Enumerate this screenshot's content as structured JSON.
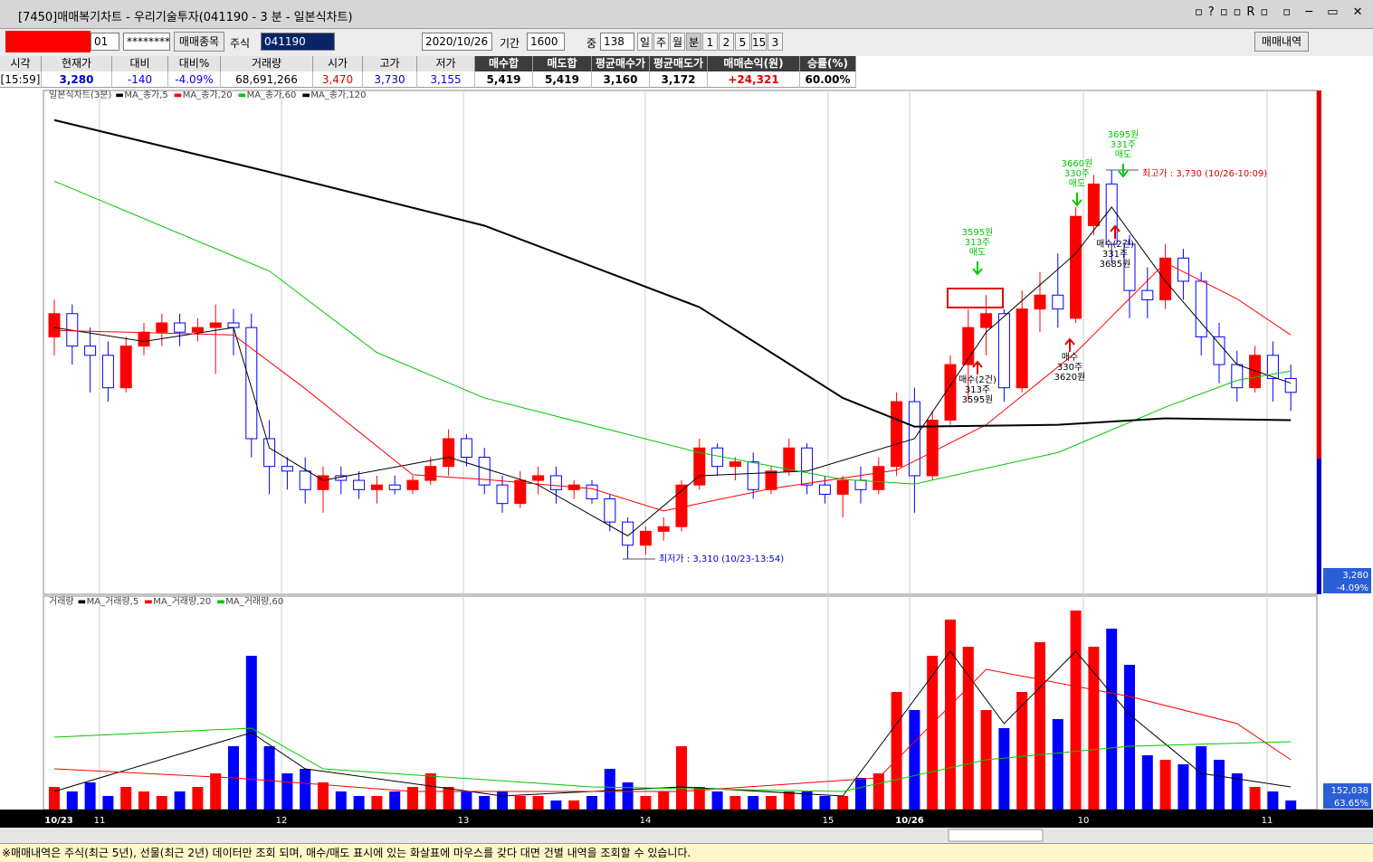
{
  "window": {
    "title": "[7450]매매복기차트 - 우리기술투자(041190 - 3 분 - 일본식차트)"
  },
  "toolbar": {
    "account": "01",
    "password": "********",
    "item_button": "매매종목",
    "type_label": "주식",
    "code": "041190",
    "date": "2020/10/26",
    "period_label": "기간",
    "period": "1600",
    "count_label": "중",
    "count": "138",
    "units": [
      "일",
      "주",
      "월",
      "분",
      "1",
      "2",
      "5",
      "15",
      "3"
    ],
    "trades_button": "매매내역"
  },
  "summary": {
    "headers": [
      "시각",
      "현재가",
      "대비",
      "대비%",
      "거래량",
      "시가",
      "고가",
      "저가",
      "매수합",
      "매도합",
      "평균매수가",
      "평균매도가",
      "매매손익(원)",
      "승률(%)"
    ],
    "values": [
      "[15:59]",
      "3,280",
      "-140",
      "-4.09%",
      "68,691,266",
      "3,470",
      "3,730",
      "3,155",
      "5,419",
      "5,419",
      "3,160",
      "3,172",
      "+24,321",
      "60.00%"
    ]
  },
  "chart_data": [
    {
      "type": "candlestick",
      "title": "일본식차트(3분)",
      "up_color": "#ff0000",
      "down_color": "#0000ff",
      "ylim": [
        3272,
        3816
      ],
      "open": [
        3550,
        3575,
        3540,
        3530,
        3495,
        3540,
        3555,
        3565,
        3555,
        3560,
        3565,
        3560,
        3440,
        3410,
        3405,
        3385,
        3400,
        3395,
        3385,
        3390,
        3385,
        3395,
        3410,
        3440,
        3420,
        3390,
        3370,
        3395,
        3400,
        3385,
        3390,
        3375,
        3350,
        3325,
        3340,
        3345,
        3390,
        3430,
        3410,
        3415,
        3385,
        3405,
        3430,
        3390,
        3380,
        3395,
        3385,
        3410,
        3480,
        3400,
        3460,
        3520,
        3560,
        3575,
        3495,
        3580,
        3595,
        3570,
        3670,
        3715,
        3650,
        3600,
        3590,
        3635,
        3610,
        3550,
        3520,
        3495,
        3530,
        3505
      ],
      "high": [
        3590,
        3585,
        3560,
        3545,
        3550,
        3565,
        3575,
        3575,
        3570,
        3585,
        3580,
        3575,
        3460,
        3420,
        3420,
        3410,
        3410,
        3405,
        3400,
        3400,
        3400,
        3420,
        3450,
        3445,
        3430,
        3400,
        3405,
        3410,
        3410,
        3395,
        3395,
        3380,
        3355,
        3345,
        3355,
        3395,
        3440,
        3435,
        3420,
        3425,
        3410,
        3440,
        3435,
        3400,
        3400,
        3410,
        3420,
        3490,
        3495,
        3470,
        3530,
        3580,
        3595,
        3580,
        3600,
        3620,
        3640,
        3690,
        3725,
        3730,
        3660,
        3625,
        3650,
        3645,
        3620,
        3565,
        3535,
        3540,
        3545,
        3520
      ],
      "low": [
        3530,
        3520,
        3490,
        3480,
        3490,
        3530,
        3540,
        3540,
        3545,
        3510,
        3530,
        3420,
        3380,
        3385,
        3370,
        3360,
        3380,
        3375,
        3370,
        3380,
        3380,
        3390,
        3400,
        3410,
        3380,
        3360,
        3365,
        3380,
        3370,
        3375,
        3370,
        3340,
        3310,
        3315,
        3330,
        3340,
        3385,
        3400,
        3395,
        3375,
        3380,
        3400,
        3380,
        3370,
        3355,
        3370,
        3380,
        3400,
        3360,
        3395,
        3455,
        3480,
        3530,
        3480,
        3490,
        3555,
        3560,
        3565,
        3660,
        3630,
        3570,
        3570,
        3580,
        3590,
        3530,
        3500,
        3480,
        3490,
        3480,
        3470
      ],
      "close": [
        3575,
        3540,
        3530,
        3495,
        3540,
        3555,
        3565,
        3555,
        3560,
        3565,
        3560,
        3440,
        3410,
        3405,
        3385,
        3400,
        3395,
        3385,
        3390,
        3385,
        3395,
        3410,
        3440,
        3420,
        3390,
        3370,
        3395,
        3400,
        3385,
        3390,
        3375,
        3350,
        3325,
        3340,
        3345,
        3390,
        3430,
        3410,
        3415,
        3385,
        3405,
        3430,
        3390,
        3380,
        3395,
        3385,
        3410,
        3480,
        3400,
        3460,
        3520,
        3560,
        3575,
        3495,
        3580,
        3595,
        3580,
        3680,
        3715,
        3650,
        3600,
        3590,
        3635,
        3610,
        3550,
        3520,
        3495,
        3530,
        3505,
        3490
      ],
      "series": [
        {
          "name": "MA_종가,5",
          "color": "#000000",
          "x": [
            0,
            5,
            10,
            12,
            15,
            22,
            27,
            32,
            36,
            42,
            48,
            52,
            57,
            59,
            62,
            66,
            69
          ],
          "values": [
            3560,
            3545,
            3560,
            3430,
            3395,
            3420,
            3390,
            3335,
            3400,
            3405,
            3440,
            3555,
            3640,
            3690,
            3610,
            3520,
            3500
          ]
        },
        {
          "name": "MA_종가,20",
          "color": "#ff0000",
          "x": [
            0,
            10,
            14,
            20,
            24,
            30,
            34,
            40,
            47,
            52,
            57,
            62,
            66,
            69
          ],
          "values": [
            3557,
            3552,
            3494,
            3401,
            3396,
            3386,
            3362,
            3386,
            3406,
            3455,
            3533,
            3630,
            3591,
            3552
          ]
        },
        {
          "name": "MA_종가,60",
          "color": "#00c800",
          "x": [
            0,
            12,
            18,
            24,
            36,
            44,
            48,
            56,
            62,
            66,
            69
          ],
          "values": [
            3718,
            3621,
            3533,
            3484,
            3425,
            3396,
            3391,
            3425,
            3474,
            3503,
            3513
          ]
        },
        {
          "name": "MA_종가,120",
          "color": "#000000",
          "x": [
            0,
            12,
            24,
            36,
            44,
            48,
            56,
            62,
            69
          ],
          "values": [
            3784,
            3728,
            3670,
            3582,
            3484,
            3453,
            3455,
            3462,
            3460
          ]
        }
      ],
      "annotations": {
        "low": "최저가 : 3,310 (10/23-13:54)",
        "high": "최고가 : 3,730 (10/26-10:09)",
        "trades": [
          [
            "3595원",
            "313주",
            "매도"
          ],
          [
            "매수(2건)",
            "313주",
            "3595원"
          ],
          [
            "매수",
            "330주",
            "3620원"
          ],
          [
            "3660원",
            "330주",
            "매도"
          ],
          [
            "3695원",
            "331주",
            "매도"
          ],
          [
            "매수(2건)",
            "331주",
            "3685원"
          ]
        ]
      },
      "price_tag": "3,280",
      "change_tag": "-4.09%"
    },
    {
      "type": "bar",
      "title": "거래량",
      "ylim": [
        0,
        1610000
      ],
      "values": [
        175000,
        140000,
        210000,
        105000,
        175000,
        140000,
        105000,
        140000,
        175000,
        280000,
        490000,
        1190000,
        490000,
        280000,
        315000,
        210000,
        140000,
        105000,
        105000,
        140000,
        175000,
        280000,
        175000,
        140000,
        105000,
        140000,
        105000,
        105000,
        70000,
        70000,
        105000,
        315000,
        210000,
        105000,
        140000,
        490000,
        175000,
        140000,
        105000,
        105000,
        105000,
        140000,
        140000,
        105000,
        105000,
        245000,
        280000,
        910000,
        770000,
        1190000,
        1470000,
        1260000,
        770000,
        630000,
        910000,
        1295000,
        700000,
        1540000,
        1260000,
        1400000,
        1120000,
        420000,
        385000,
        350000,
        490000,
        385000,
        280000,
        175000,
        140000,
        70000
      ],
      "series": [
        {
          "name": "MA_거래량,5",
          "color": "#000000",
          "x": [
            0,
            11,
            14,
            25,
            35,
            44,
            50,
            53,
            57,
            60,
            64,
            69
          ],
          "values": [
            140000,
            595000,
            315000,
            105000,
            175000,
            105000,
            1225000,
            665000,
            1225000,
            735000,
            280000,
            175000
          ]
        },
        {
          "name": "MA_거래량,20",
          "color": "#ff0000",
          "x": [
            0,
            10,
            20,
            35,
            46,
            52,
            60,
            66,
            69
          ],
          "values": [
            315000,
            245000,
            140000,
            140000,
            245000,
            1085000,
            875000,
            665000,
            385000
          ]
        },
        {
          "name": "MA_거래량,60",
          "color": "#00c800",
          "x": [
            0,
            11,
            15,
            30,
            44,
            52,
            60,
            69
          ],
          "values": [
            560000,
            630000,
            315000,
            175000,
            140000,
            385000,
            490000,
            525000
          ]
        }
      ],
      "volume_tag": "152,038",
      "ratio_tag": "63.65%",
      "x_labels": [
        "10/23",
        "11",
        "12",
        "13",
        "14",
        "15",
        "10/26",
        "10",
        "11"
      ]
    }
  ],
  "status": "※매매내역은 주식(최근 5년), 선물(최근 2년) 데이터만 조회 되며, 매수/매도 표시에 있는 화살표에 마우스를 갖다 대면 건별 내역을 조회할 수 있습니다."
}
